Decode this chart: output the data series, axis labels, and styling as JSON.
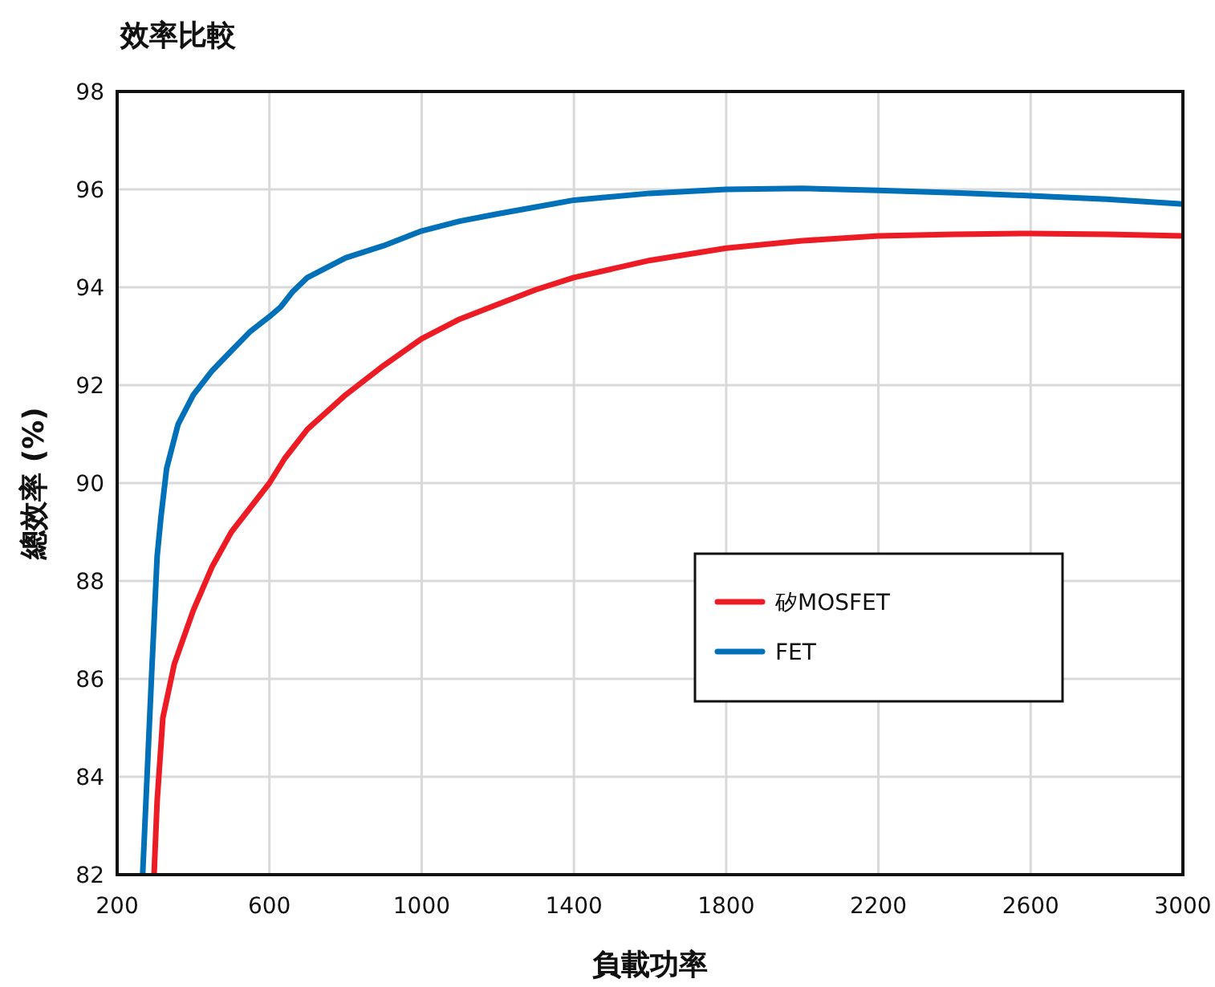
{
  "chart_data": {
    "type": "line",
    "title": "效率比較",
    "xlabel": "負載功率",
    "ylabel": "總效率 (%)",
    "xlim": [
      200,
      3000
    ],
    "ylim": [
      82,
      98
    ],
    "xticks": [
      200,
      600,
      1000,
      1400,
      1800,
      2200,
      2600,
      3000
    ],
    "yticks": [
      82,
      84,
      86,
      88,
      90,
      92,
      94,
      96,
      98
    ],
    "grid": true,
    "legend": "right",
    "marker": "none",
    "line_style": "solid",
    "series": [
      {
        "name": "矽MOSFET",
        "color": "#ed1c24",
        "x": [
          297,
          305,
          320,
          350,
          400,
          450,
          500,
          550,
          600,
          640,
          700,
          800,
          900,
          1000,
          1100,
          1200,
          1300,
          1400,
          1600,
          1800,
          2000,
          2200,
          2400,
          2600,
          2800,
          3000
        ],
        "values": [
          82,
          83.5,
          85.2,
          86.3,
          87.4,
          88.3,
          89.0,
          89.5,
          90.0,
          90.5,
          91.1,
          91.8,
          92.4,
          92.95,
          93.35,
          93.65,
          93.95,
          94.2,
          94.55,
          94.8,
          94.95,
          95.05,
          95.08,
          95.1,
          95.08,
          95.05
        ]
      },
      {
        "name": "FET",
        "color": "#0070b8",
        "x": [
          267,
          290,
          305,
          315,
          330,
          360,
          400,
          450,
          500,
          550,
          600,
          630,
          660,
          700,
          800,
          900,
          1000,
          1100,
          1200,
          1400,
          1600,
          1800,
          2000,
          2200,
          2400,
          2600,
          2800,
          3000
        ],
        "values": [
          82,
          86,
          88.5,
          89.3,
          90.3,
          91.2,
          91.8,
          92.3,
          92.7,
          93.1,
          93.4,
          93.6,
          93.9,
          94.2,
          94.6,
          94.85,
          95.15,
          95.35,
          95.5,
          95.78,
          95.92,
          96.0,
          96.02,
          95.98,
          95.93,
          95.87,
          95.8,
          95.7
        ]
      }
    ]
  }
}
